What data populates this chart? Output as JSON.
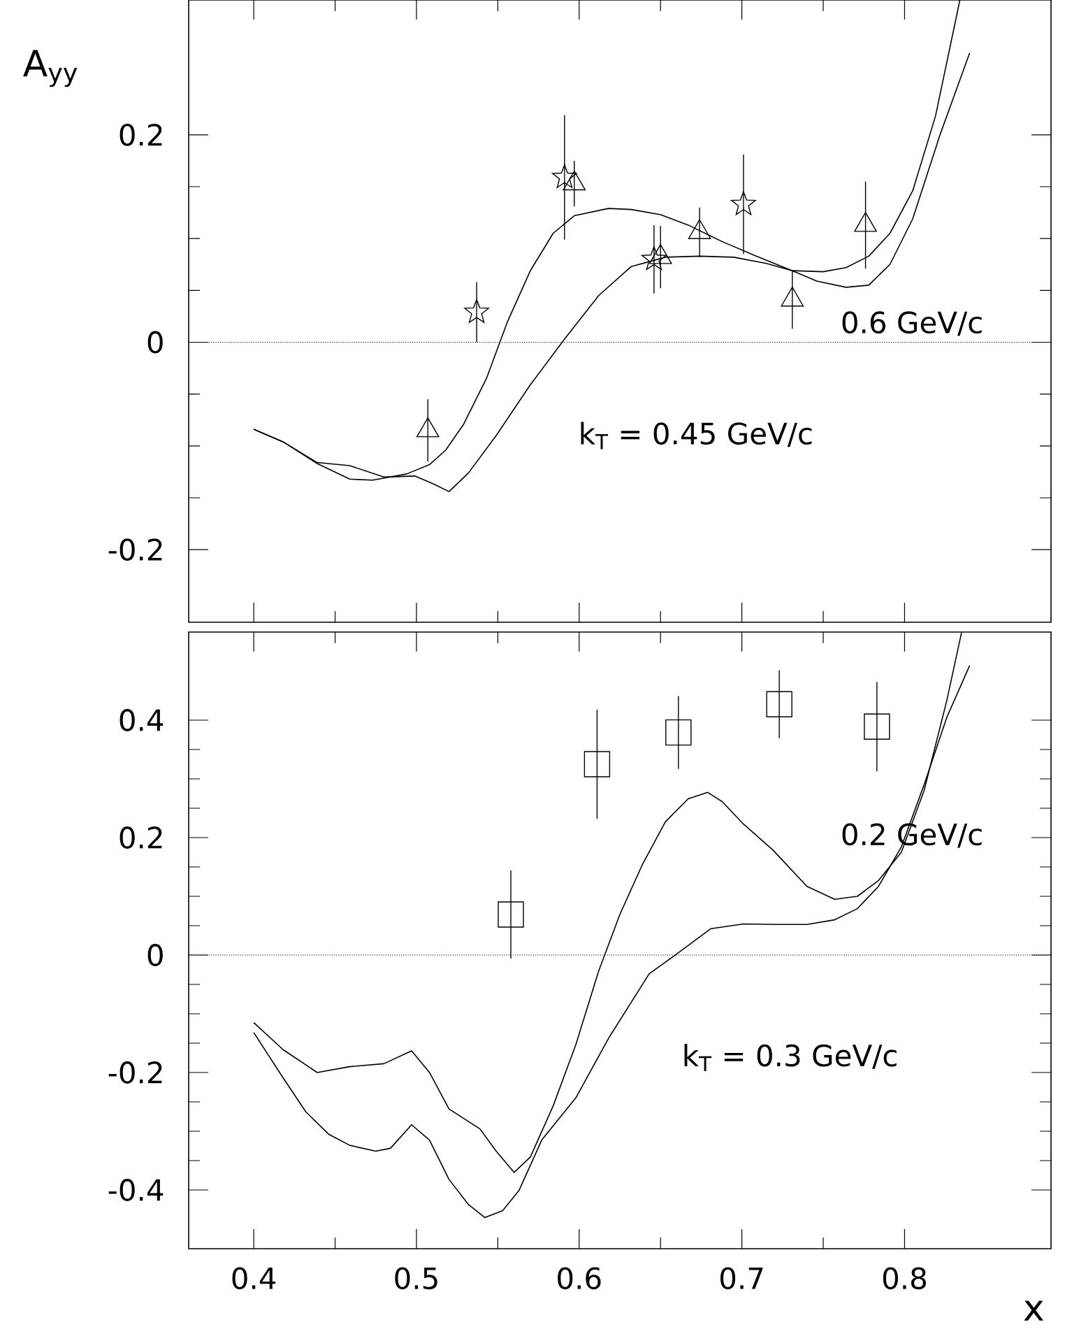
{
  "chart_data": [
    {
      "type": "line",
      "ylabel": "A$_{yy}$",
      "xlim": [
        0.36,
        0.89
      ],
      "ylim": [
        -0.27,
        0.33
      ],
      "xticks": [
        0.4,
        0.5,
        0.6,
        0.7,
        0.8
      ],
      "yticks": [
        -0.2,
        0,
        0.2
      ],
      "tick_labels": "y",
      "ref_lines": [
        {
          "axis": "y",
          "value": 0,
          "line_style": "dotted"
        }
      ],
      "annotations": [
        "0.6 GeV/c",
        "k$_{T}$ = 0.45 GeV/c"
      ],
      "series": [
        {
          "color": "#000000",
          "x": [
            0.4,
            0.418,
            0.439,
            0.459,
            0.473,
            0.494,
            0.508,
            0.518,
            0.529,
            0.543,
            0.556,
            0.57,
            0.584,
            0.597,
            0.618,
            0.632,
            0.65,
            0.667,
            0.688,
            0.709,
            0.731,
            0.75,
            0.764,
            0.778,
            0.791,
            0.805,
            0.819,
            0.834
          ],
          "values": [
            -0.084,
            -0.096,
            -0.117,
            -0.132,
            -0.133,
            -0.127,
            -0.118,
            -0.104,
            -0.079,
            -0.035,
            0.02,
            0.069,
            0.105,
            0.122,
            0.129,
            0.128,
            0.123,
            0.113,
            0.097,
            0.083,
            0.069,
            0.068,
            0.072,
            0.083,
            0.105,
            0.146,
            0.218,
            0.33
          ]
        },
        {
          "color": "#000000",
          "x": [
            0.4,
            0.418,
            0.439,
            0.459,
            0.48,
            0.499,
            0.511,
            0.52,
            0.532,
            0.549,
            0.57,
            0.591,
            0.612,
            0.632,
            0.653,
            0.674,
            0.695,
            0.715,
            0.731,
            0.746,
            0.764,
            0.778,
            0.791,
            0.805,
            0.822,
            0.84
          ],
          "values": [
            -0.084,
            -0.096,
            -0.116,
            -0.119,
            -0.13,
            -0.129,
            -0.137,
            -0.144,
            -0.126,
            -0.09,
            -0.041,
            0.003,
            0.045,
            0.073,
            0.082,
            0.083,
            0.082,
            0.076,
            0.069,
            0.059,
            0.053,
            0.055,
            0.075,
            0.119,
            0.201,
            0.279
          ]
        },
        {
          "type": "scatter",
          "marker": "triangle",
          "color": "#000000",
          "x": [
            0.507,
            0.597,
            0.65,
            0.674,
            0.731,
            0.776
          ],
          "values": [
            -0.085,
            0.153,
            0.082,
            0.106,
            0.041,
            0.113
          ],
          "errors": [
            0.03,
            0.022,
            0.03,
            0.024,
            0.028,
            0.042
          ]
        },
        {
          "type": "scatter",
          "marker": "star",
          "color": "#000000",
          "x": [
            0.537,
            0.591,
            0.646,
            0.701
          ],
          "values": [
            0.029,
            0.159,
            0.08,
            0.133
          ],
          "errors": [
            0.029,
            0.06,
            0.033,
            0.048
          ]
        }
      ]
    },
    {
      "type": "line",
      "xlabel": "x",
      "xlim": [
        0.36,
        0.89
      ],
      "ylim": [
        -0.5,
        0.55
      ],
      "xticks": [
        0.4,
        0.5,
        0.6,
        0.7,
        0.8
      ],
      "yticks": [
        -0.4,
        -0.2,
        0,
        0.2,
        0.4
      ],
      "ref_lines": [
        {
          "axis": "y",
          "value": 0,
          "line_style": "dotted"
        }
      ],
      "annotations": [
        "0.2 GeV/c",
        "k$_{T}$ = 0.3 GeV/c"
      ],
      "series": [
        {
          "color": "#000000",
          "x": [
            0.4,
            0.418,
            0.439,
            0.459,
            0.48,
            0.497,
            0.508,
            0.52,
            0.539,
            0.549,
            0.56,
            0.57,
            0.584,
            0.598,
            0.612,
            0.625,
            0.639,
            0.653,
            0.667,
            0.679,
            0.688,
            0.701,
            0.719,
            0.74,
            0.757,
            0.771,
            0.784,
            0.798,
            0.812,
            0.826,
            0.835
          ],
          "values": [
            -0.115,
            -0.161,
            -0.2,
            -0.19,
            -0.185,
            -0.163,
            -0.2,
            -0.262,
            -0.296,
            -0.334,
            -0.37,
            -0.344,
            -0.257,
            -0.152,
            -0.027,
            0.069,
            0.155,
            0.227,
            0.266,
            0.277,
            0.261,
            0.223,
            0.179,
            0.117,
            0.095,
            0.1,
            0.127,
            0.175,
            0.28,
            0.434,
            0.549
          ]
        },
        {
          "color": "#000000",
          "x": [
            0.4,
            0.418,
            0.432,
            0.446,
            0.459,
            0.475,
            0.484,
            0.497,
            0.508,
            0.52,
            0.532,
            0.542,
            0.553,
            0.563,
            0.577,
            0.598,
            0.618,
            0.643,
            0.66,
            0.681,
            0.701,
            0.722,
            0.74,
            0.757,
            0.771,
            0.784,
            0.798,
            0.812,
            0.826,
            0.84
          ],
          "values": [
            -0.132,
            -0.209,
            -0.267,
            -0.305,
            -0.324,
            -0.334,
            -0.329,
            -0.289,
            -0.315,
            -0.382,
            -0.425,
            -0.447,
            -0.435,
            -0.401,
            -0.315,
            -0.243,
            -0.142,
            -0.032,
            0.002,
            0.045,
            0.053,
            0.052,
            0.052,
            0.06,
            0.079,
            0.117,
            0.184,
            0.29,
            0.405,
            0.493
          ]
        },
        {
          "type": "scatter",
          "marker": "square",
          "color": "#000000",
          "x": [
            0.558,
            0.611,
            0.661,
            0.723,
            0.783
          ],
          "values": [
            0.069,
            0.325,
            0.379,
            0.427,
            0.389
          ],
          "errors": [
            0.075,
            0.093,
            0.062,
            0.058,
            0.076
          ]
        }
      ]
    }
  ]
}
